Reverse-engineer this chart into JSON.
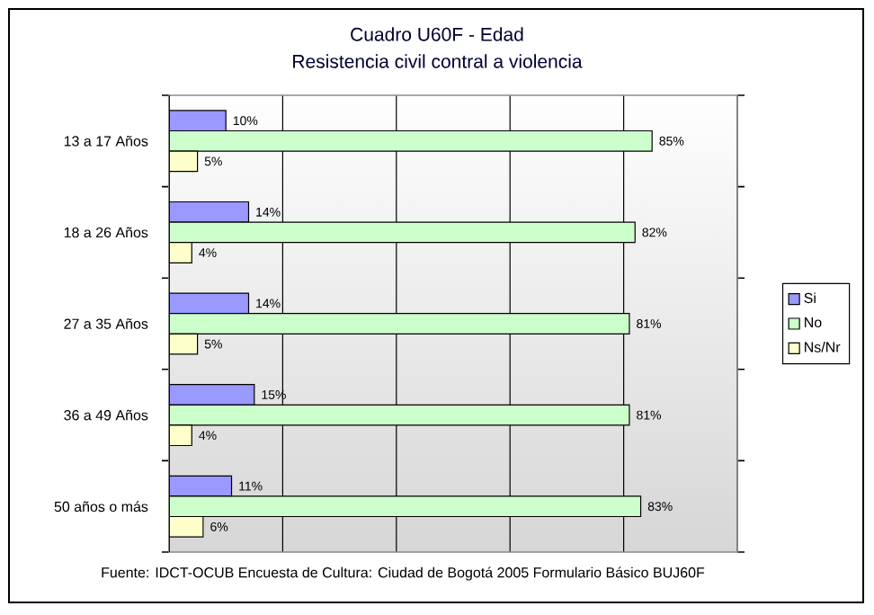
{
  "chart_data": {
    "type": "bar",
    "orientation": "horizontal",
    "title": "Cuadro U60F - Edad",
    "subtitle": "Resistencia civil contral a violencia",
    "categories": [
      "13 a 17 Años",
      "18 a 26 Años",
      "27 a 35 Años",
      "36 a 49 Años",
      "50 años o más"
    ],
    "series": [
      {
        "name": "Si",
        "color": "#9999ff",
        "values": [
          10,
          14,
          14,
          15,
          11
        ],
        "value_labels": [
          "10%",
          "14%",
          "14%",
          "15%",
          "11%"
        ]
      },
      {
        "name": "No",
        "color": "#ccffcc",
        "values": [
          85,
          82,
          81,
          81,
          83
        ],
        "value_labels": [
          "85%",
          "82%",
          "81%",
          "81%",
          "83%"
        ]
      },
      {
        "name": "Ns/Nr",
        "color": "#ffffcc",
        "values": [
          5,
          4,
          5,
          4,
          6
        ],
        "value_labels": [
          "5%",
          "4%",
          "5%",
          "4%",
          "6%"
        ]
      }
    ],
    "xlim": [
      0,
      100
    ],
    "xticks": [
      {
        "value": 0,
        "label": null
      },
      {
        "value": 20,
        "label": null
      },
      {
        "value": 40,
        "label": null
      },
      {
        "value": 60,
        "label": null
      },
      {
        "value": 80,
        "label": null
      },
      {
        "value": 100,
        "label": null
      }
    ],
    "tick_labels": "y",
    "grid": "x",
    "legend": "right",
    "annotations": [
      "Fuente: IDCT-OCUB Encuesta de Cultura: Ciudad de Bogotá 2005 Formulario Básico BUJ60F"
    ]
  }
}
